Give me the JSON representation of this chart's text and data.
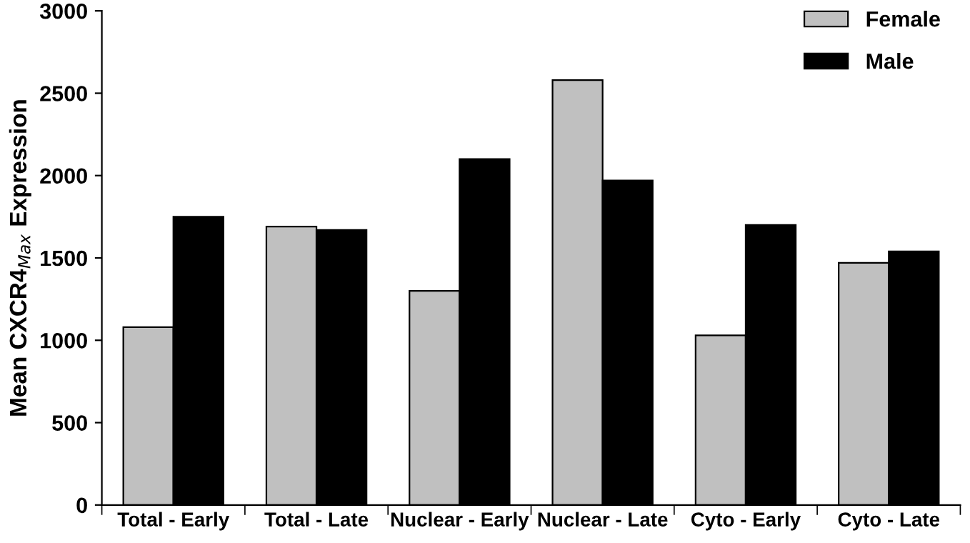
{
  "chart_data": {
    "type": "bar",
    "ylabel": "Mean CXCR4$_{Max}$ Expression",
    "categories": [
      "Total - Early",
      "Total - Late",
      "Nuclear - Early",
      "Nuclear - Late",
      "Cyto - Early",
      "Cyto - Late"
    ],
    "series": [
      {
        "name": "Female",
        "color": "#c0c0c0",
        "values": [
          1080,
          1690,
          1300,
          2580,
          1030,
          1470
        ]
      },
      {
        "name": "Male",
        "color": "#000000",
        "values": [
          1750,
          1670,
          2100,
          1970,
          1700,
          1540
        ]
      }
    ],
    "ylim": [
      0,
      3000
    ],
    "yticks": [
      0,
      500,
      1000,
      1500,
      2000,
      2500,
      3000
    ],
    "grid": false,
    "legend": "top right"
  }
}
